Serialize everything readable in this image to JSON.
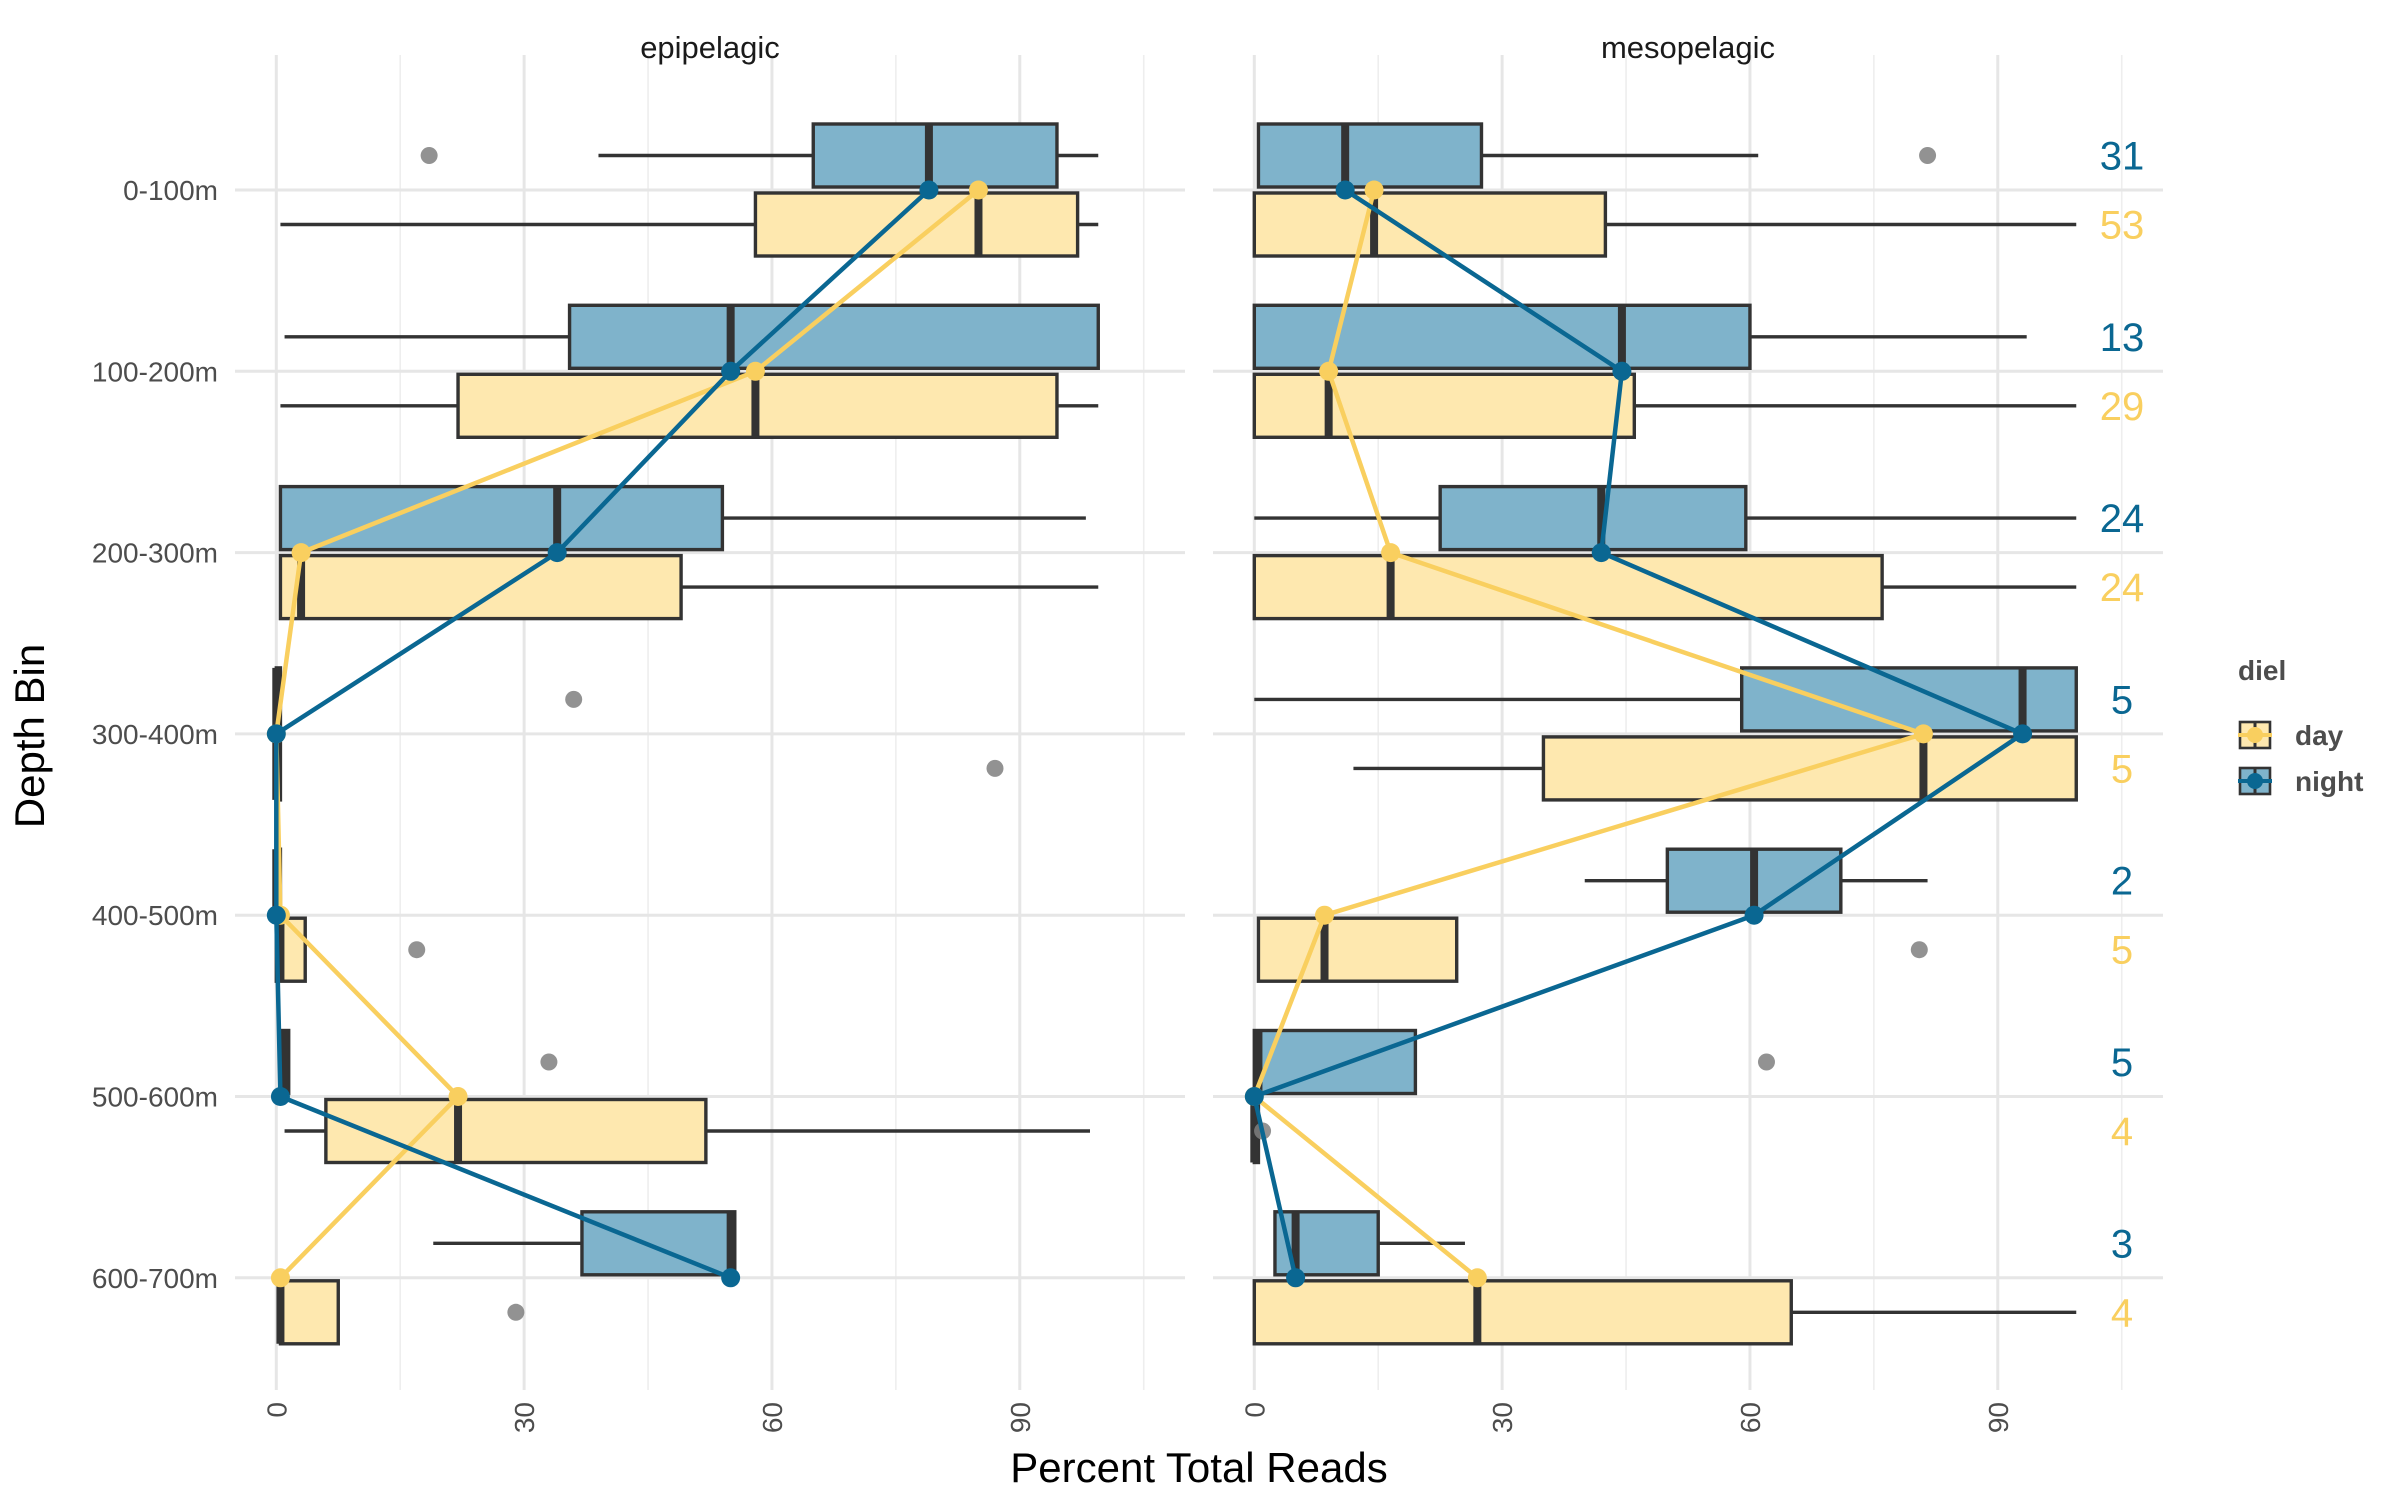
{
  "chart_data": {
    "type": "box",
    "xlabel": "Percent Total Reads",
    "ylabel": "Depth Bin",
    "x_ticks": [
      0,
      30,
      60,
      90
    ],
    "xlim": [
      -5,
      110
    ],
    "categories": [
      "0-100m",
      "100-200m",
      "200-300m",
      "300-400m",
      "400-500m",
      "500-600m",
      "600-700m"
    ],
    "colors": {
      "day": "#F9CF5F",
      "night": "#0A6792",
      "day_fill": "#FEE8AF",
      "night_fill": "#7FB3CB"
    },
    "legend": {
      "title": "diel",
      "entries": [
        "day",
        "night"
      ],
      "position": "right"
    },
    "panels": [
      {
        "name": "epipelagic",
        "series": [
          {
            "name": "night",
            "boxes": [
              {
                "cat": "0-100m",
                "q1": 65,
                "median": 79,
                "q3": 94.5,
                "wlo": 39,
                "whi": 99.5,
                "outliers": [
                  18.5
                ]
              },
              {
                "cat": "100-200m",
                "q1": 35.5,
                "median": 55,
                "q3": 99.5,
                "wlo": 1,
                "whi": 99.5,
                "outliers": []
              },
              {
                "cat": "200-300m",
                "q1": 0.5,
                "median": 34,
                "q3": 54,
                "wlo": 0.5,
                "whi": 98,
                "outliers": []
              },
              {
                "cat": "300-400m",
                "q1": 0,
                "median": 0,
                "q3": 0.5,
                "wlo": 0,
                "whi": 0.5,
                "outliers": [
                  36
                ]
              },
              {
                "cat": "400-500m",
                "q1": 0,
                "median": 0,
                "q3": 0.5,
                "wlo": 0,
                "whi": 0.5,
                "outliers": []
              },
              {
                "cat": "500-600m",
                "q1": 0.5,
                "median": 1,
                "q3": 1.5,
                "wlo": 0.5,
                "whi": 1.5,
                "outliers": [
                  33
                ]
              },
              {
                "cat": "600-700m",
                "q1": 37,
                "median": 55,
                "q3": 55.5,
                "wlo": 19,
                "whi": 55.5,
                "outliers": []
              }
            ],
            "means": [
              79,
              55,
              34,
              0,
              0,
              0.5,
              55
            ]
          },
          {
            "name": "day",
            "boxes": [
              {
                "cat": "0-100m",
                "q1": 58,
                "median": 85,
                "q3": 97,
                "wlo": 0.5,
                "whi": 99.5,
                "outliers": []
              },
              {
                "cat": "100-200m",
                "q1": 22,
                "median": 58,
                "q3": 94.5,
                "wlo": 0.5,
                "whi": 99.5,
                "outliers": []
              },
              {
                "cat": "200-300m",
                "q1": 0.5,
                "median": 3,
                "q3": 49,
                "wlo": 0.5,
                "whi": 99.5,
                "outliers": []
              },
              {
                "cat": "300-400m",
                "q1": 0,
                "median": 0,
                "q3": 0.5,
                "wlo": 0,
                "whi": 0.5,
                "outliers": [
                  87
                ]
              },
              {
                "cat": "400-500m",
                "q1": 0,
                "median": 0.5,
                "q3": 3.5,
                "wlo": 0,
                "whi": 3.5,
                "outliers": [
                  17
                ]
              },
              {
                "cat": "500-600m",
                "q1": 6,
                "median": 22,
                "q3": 52,
                "wlo": 1,
                "whi": 98.5,
                "outliers": []
              },
              {
                "cat": "600-700m",
                "q1": 0.5,
                "median": 0.5,
                "q3": 7.5,
                "wlo": 0.5,
                "whi": 7.5,
                "outliers": [
                  29
                ]
              }
            ],
            "means": [
              85,
              58,
              3,
              0,
              0.5,
              22,
              0.5
            ]
          }
        ]
      },
      {
        "name": "mesopelagic",
        "series": [
          {
            "name": "night",
            "boxes": [
              {
                "cat": "0-100m",
                "q1": 0.5,
                "median": 11,
                "q3": 27.5,
                "wlo": 0.5,
                "whi": 61,
                "outliers": [
                  81.5
                ]
              },
              {
                "cat": "100-200m",
                "q1": 0,
                "median": 44.5,
                "q3": 60,
                "wlo": 0,
                "whi": 93.5,
                "outliers": []
              },
              {
                "cat": "200-300m",
                "q1": 22.5,
                "median": 42,
                "q3": 59.5,
                "wlo": 0,
                "whi": 99.5,
                "outliers": []
              },
              {
                "cat": "300-400m",
                "q1": 59,
                "median": 93,
                "q3": 99.5,
                "wlo": 0,
                "whi": 99.5,
                "outliers": []
              },
              {
                "cat": "400-500m",
                "q1": 50,
                "median": 60.5,
                "q3": 71,
                "wlo": 40,
                "whi": 81.5,
                "outliers": []
              },
              {
                "cat": "500-600m",
                "q1": 0,
                "median": 0.5,
                "q3": 19.5,
                "wlo": 0,
                "whi": 19.5,
                "outliers": [
                  62
                ]
              },
              {
                "cat": "600-700m",
                "q1": 2.5,
                "median": 5,
                "q3": 15,
                "wlo": 2.5,
                "whi": 25.5,
                "outliers": []
              }
            ],
            "means": [
              11,
              44.5,
              42,
              93,
              60.5,
              0,
              5
            ]
          },
          {
            "name": "day",
            "boxes": [
              {
                "cat": "0-100m",
                "q1": 0,
                "median": 14.5,
                "q3": 42.5,
                "wlo": 0,
                "whi": 99.5,
                "outliers": []
              },
              {
                "cat": "100-200m",
                "q1": 0,
                "median": 9,
                "q3": 46,
                "wlo": 0,
                "whi": 99.5,
                "outliers": []
              },
              {
                "cat": "200-300m",
                "q1": 0,
                "median": 16.5,
                "q3": 76,
                "wlo": 0,
                "whi": 99.5,
                "outliers": []
              },
              {
                "cat": "300-400m",
                "q1": 35,
                "median": 81,
                "q3": 99.5,
                "wlo": 12,
                "whi": 99.5,
                "outliers": []
              },
              {
                "cat": "400-500m",
                "q1": 0.5,
                "median": 8.5,
                "q3": 24.5,
                "wlo": 0.5,
                "whi": 24.5,
                "outliers": [
                  80.5
                ]
              },
              {
                "cat": "500-600m",
                "q1": 0,
                "median": 0,
                "q3": 0.5,
                "wlo": 0,
                "whi": 0.5,
                "outliers": [
                  1
                ]
              },
              {
                "cat": "600-700m",
                "q1": 0,
                "median": 27,
                "q3": 65,
                "wlo": 0,
                "whi": 99.5,
                "outliers": []
              }
            ],
            "means": [
              14.5,
              9,
              16.5,
              81,
              8.5,
              0,
              27
            ]
          }
        ]
      }
    ],
    "counts": [
      {
        "cat": "0-100m",
        "night": "31",
        "day": "53"
      },
      {
        "cat": "100-200m",
        "night": "13",
        "day": "29"
      },
      {
        "cat": "200-300m",
        "night": "24",
        "day": "24"
      },
      {
        "cat": "300-400m",
        "night": "5",
        "day": "5"
      },
      {
        "cat": "400-500m",
        "night": "2",
        "day": "5"
      },
      {
        "cat": "500-600m",
        "night": "5",
        "day": "4"
      },
      {
        "cat": "600-700m",
        "night": "3",
        "day": "4"
      }
    ]
  }
}
